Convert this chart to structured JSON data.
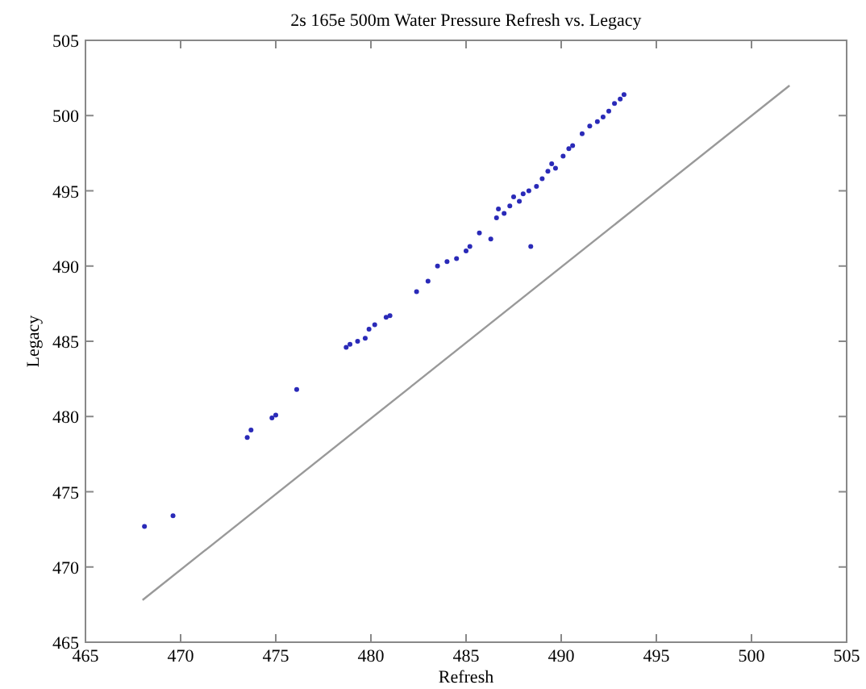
{
  "chart_data": {
    "type": "scatter",
    "title": "2s 165e 500m Water Pressure Refresh vs. Legacy",
    "xlabel": "Refresh",
    "ylabel": "Legacy",
    "xlim": [
      465,
      505
    ],
    "xticks": [
      465,
      470,
      475,
      480,
      485,
      490,
      495,
      500,
      505
    ],
    "ylim": [
      465,
      505
    ],
    "yticks": [
      465,
      470,
      475,
      480,
      485,
      490,
      495,
      500,
      505
    ],
    "grid": false,
    "marker": "circle",
    "series": [
      {
        "color": "#2a2ab8",
        "x": [
          468.1,
          469.6,
          473.5,
          473.7,
          474.8,
          475.0,
          476.1,
          478.7,
          478.9,
          479.3,
          479.7,
          479.9,
          480.2,
          480.8,
          481.0,
          482.4,
          483.0,
          483.5,
          484.0,
          484.5,
          485.0,
          485.2,
          485.7,
          486.3,
          486.6,
          486.7,
          487.0,
          487.3,
          487.5,
          487.8,
          488.0,
          488.3,
          488.4,
          488.7,
          489.0,
          489.3,
          489.5,
          489.7,
          490.1,
          490.4,
          490.6,
          491.1,
          491.5,
          491.9,
          492.2,
          492.5,
          492.8,
          493.1,
          493.3
        ],
        "values": [
          472.7,
          473.4,
          478.6,
          479.1,
          479.9,
          480.1,
          481.8,
          484.6,
          484.8,
          485.0,
          485.2,
          485.8,
          486.1,
          486.6,
          486.7,
          488.3,
          489.0,
          490.0,
          490.3,
          490.5,
          491.0,
          491.3,
          492.2,
          491.8,
          493.2,
          493.8,
          493.5,
          494.0,
          494.6,
          494.3,
          494.8,
          495.0,
          491.3,
          495.3,
          495.8,
          496.3,
          496.8,
          496.5,
          497.3,
          497.8,
          498.0,
          498.8,
          499.3,
          499.6,
          499.9,
          500.3,
          500.8,
          501.1,
          501.4
        ]
      },
      {
        "type": "line",
        "color": "#999999",
        "marker": "none",
        "line_style": "solid",
        "x": [
          468,
          502
        ],
        "values": [
          467.8,
          502
        ]
      }
    ]
  }
}
